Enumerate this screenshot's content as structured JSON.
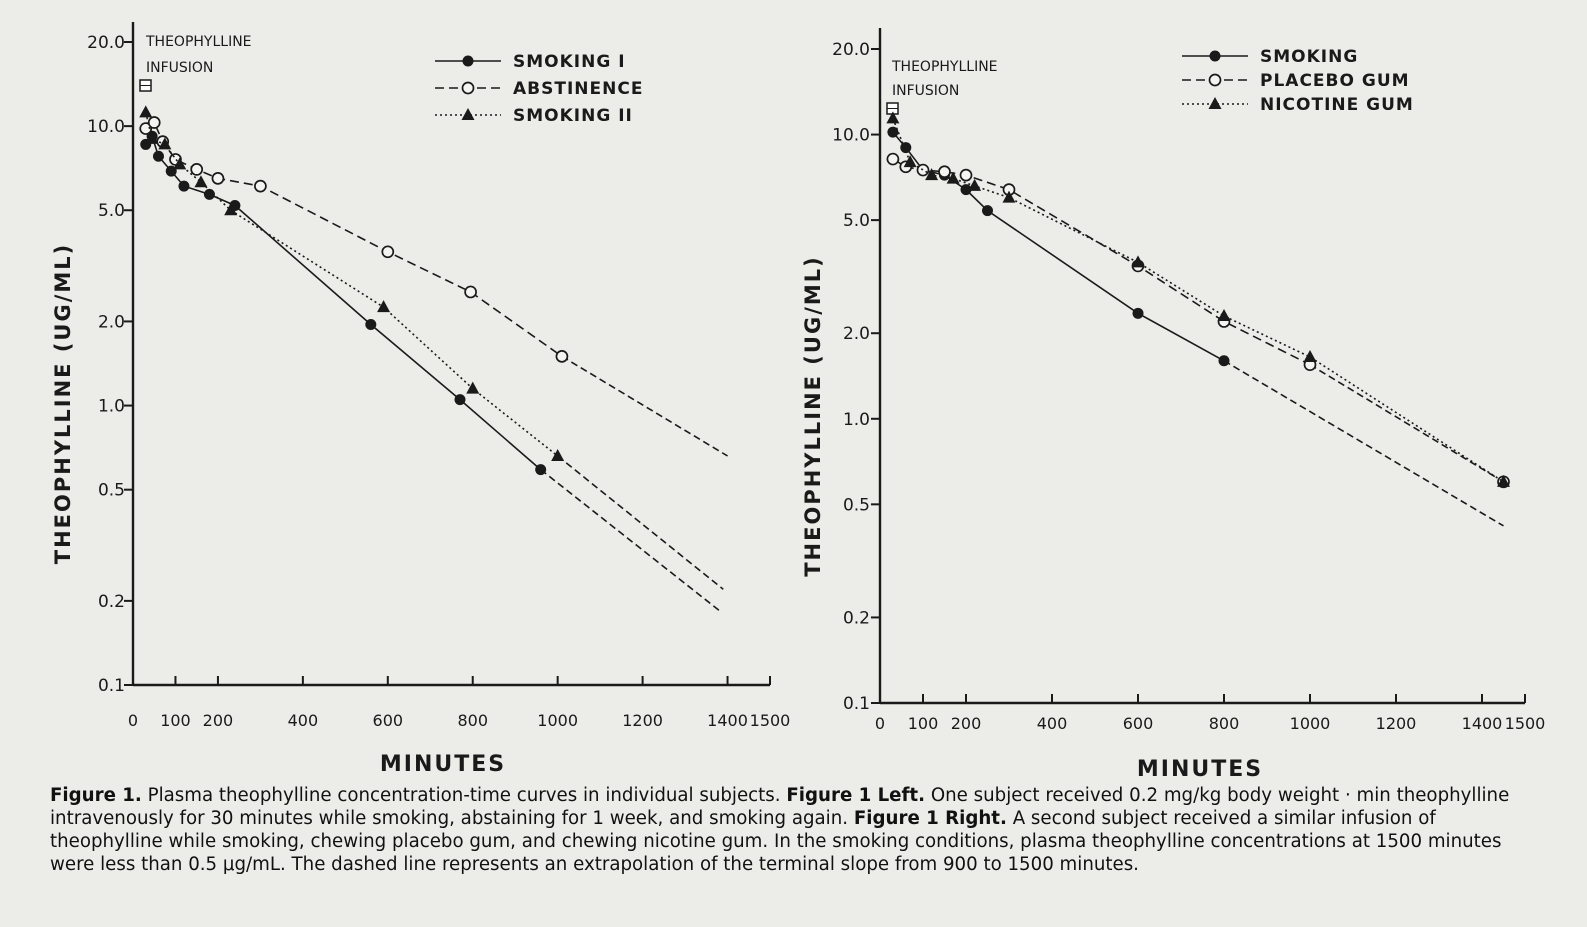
{
  "chart_data": [
    {
      "type": "line",
      "panel": "left",
      "ylabel": "THEOPHYLLINE (UG/ML)",
      "xlabel": "MINUTES",
      "y_scale": "log",
      "ylim": [
        0.1,
        20.0
      ],
      "xlim": [
        0,
        1500
      ],
      "xticks": [
        "0",
        "100",
        "200",
        "400",
        "600",
        "800",
        "1000",
        "1200",
        "1400",
        "1500"
      ],
      "yticks": [
        "20.0",
        "10.0",
        "5.0",
        "2.0",
        "1.0",
        "0.5",
        "0.2",
        "0.1"
      ],
      "annotation": [
        "THEOPHYLLINE",
        "INFUSION"
      ],
      "series": [
        {
          "name": "SMOKING I",
          "marker": "filled-circle",
          "dash": "solid",
          "points": [
            [
              30,
              8.6
            ],
            [
              45,
              9.2
            ],
            [
              60,
              7.8
            ],
            [
              90,
              6.9
            ],
            [
              120,
              6.1
            ],
            [
              180,
              5.7
            ],
            [
              240,
              5.2
            ],
            [
              560,
              1.95
            ],
            [
              770,
              1.05
            ],
            [
              960,
              0.59
            ]
          ],
          "extrapolation": [
            [
              960,
              0.59
            ],
            [
              1380,
              0.185
            ]
          ]
        },
        {
          "name": "ABSTINENCE",
          "marker": "open-circle",
          "dash": "dashed",
          "points": [
            [
              30,
              9.8
            ],
            [
              50,
              10.3
            ],
            [
              70,
              8.8
            ],
            [
              100,
              7.6
            ],
            [
              150,
              7.0
            ],
            [
              200,
              6.5
            ],
            [
              300,
              6.1
            ],
            [
              600,
              3.55
            ],
            [
              795,
              2.55
            ],
            [
              1010,
              1.5
            ]
          ],
          "extrapolation": [
            [
              1010,
              1.5
            ],
            [
              1400,
              0.66
            ]
          ]
        },
        {
          "name": "SMOKING II",
          "marker": "filled-triangle",
          "dash": "dotted",
          "points": [
            [
              30,
              11.2
            ],
            [
              45,
              9.0
            ],
            [
              75,
              8.6
            ],
            [
              110,
              7.3
            ],
            [
              160,
              6.3
            ],
            [
              230,
              5.0
            ],
            [
              590,
              2.25
            ],
            [
              800,
              1.15
            ],
            [
              1000,
              0.66
            ]
          ],
          "extrapolation": [
            [
              1000,
              0.66
            ],
            [
              1390,
              0.22
            ]
          ]
        }
      ]
    },
    {
      "type": "line",
      "panel": "right",
      "ylabel": "THEOPHYLLINE (UG/ML)",
      "xlabel": "MINUTES",
      "y_scale": "log",
      "ylim": [
        0.1,
        20.0
      ],
      "xlim": [
        0,
        1500
      ],
      "xticks": [
        "0",
        "100",
        "200",
        "400",
        "600",
        "800",
        "1000",
        "1200",
        "1400",
        "1500"
      ],
      "yticks": [
        "20.0",
        "10.0",
        "5.0",
        "2.0",
        "1.0",
        "0.5",
        "0.2",
        "0.1"
      ],
      "annotation": [
        "THEOPHYLLINE",
        "INFUSION"
      ],
      "series": [
        {
          "name": "SMOKING",
          "marker": "filled-circle",
          "dash": "solid",
          "points": [
            [
              30,
              10.2
            ],
            [
              60,
              9.0
            ],
            [
              100,
              7.5
            ],
            [
              150,
              7.2
            ],
            [
              200,
              6.4
            ],
            [
              250,
              5.4
            ],
            [
              600,
              2.35
            ],
            [
              800,
              1.6
            ]
          ],
          "extrapolation": [
            [
              800,
              1.6
            ],
            [
              1450,
              0.42
            ]
          ]
        },
        {
          "name": "PLACEBO GUM",
          "marker": "open-circle",
          "dash": "dashed",
          "points": [
            [
              30,
              8.2
            ],
            [
              60,
              7.7
            ],
            [
              100,
              7.5
            ],
            [
              150,
              7.4
            ],
            [
              200,
              7.2
            ],
            [
              300,
              6.4
            ],
            [
              600,
              3.45
            ],
            [
              800,
              2.2
            ],
            [
              1000,
              1.55
            ]
          ],
          "extrapolation": [
            [
              1000,
              1.55
            ],
            [
              1450,
              0.6
            ]
          ]
        },
        {
          "name": "NICOTINE GUM",
          "marker": "filled-triangle",
          "dash": "dotted",
          "points": [
            [
              30,
              11.4
            ],
            [
              70,
              8.0
            ],
            [
              120,
              7.2
            ],
            [
              170,
              7.0
            ],
            [
              220,
              6.6
            ],
            [
              300,
              6.0
            ],
            [
              600,
              3.55
            ],
            [
              800,
              2.3
            ],
            [
              1000,
              1.65
            ],
            [
              1450,
              0.6
            ]
          ]
        }
      ]
    }
  ],
  "caption": {
    "fig_label": "Figure 1.",
    "text1": " Plasma theophylline concentration-time curves in individual subjects. ",
    "left_label": "Figure 1 Left.",
    "text2": " One subject received 0.2 mg/kg body weight · min theophylline intravenously for 30 minutes while smoking, abstaining for 1 week, and smoking again. ",
    "right_label": "Figure 1 Right.",
    "text3": " A second subject received a similar infusion of theophylline while smoking, chewing placebo gum, and chewing nicotine gum. In the smoking conditions, plasma theophylline concentrations at 1500 minutes were less than 0.5 μg/mL. The dashed line represents an extrapolation of the terminal slope from 900 to 1500 minutes."
  }
}
